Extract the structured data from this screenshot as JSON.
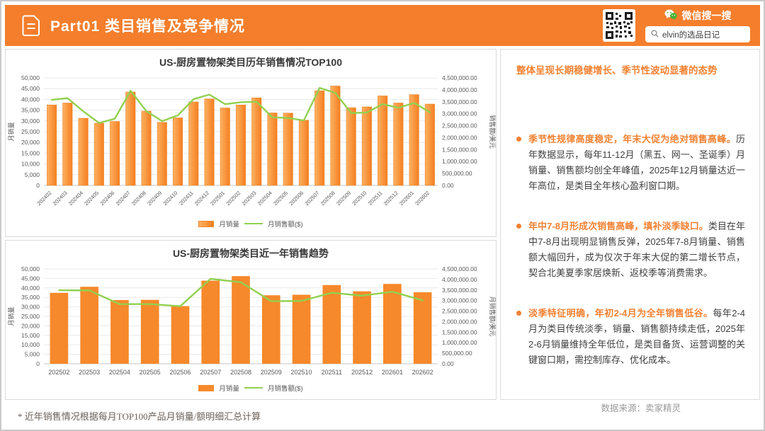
{
  "header": {
    "title": "Part01 类目销售及竞争情况",
    "wechat_label": "微信搜一搜",
    "search_text": "elvin的选品日记"
  },
  "insights": {
    "heading": "整体呈现长期稳健增长、季节性波动显著的态势",
    "bullets": [
      {
        "lead": "季节性规律高度稳定，年末大促为绝对销售高峰。",
        "body": "历年数据显示，每年11-12月（黑五、网一、圣诞季）月销量、销售额均创全年峰值，2025年12月销量达近一年高位，是类目全年核心盈利窗口期。"
      },
      {
        "lead": "年中7-8月形成次销售高峰，填补淡季缺口。",
        "body": "类目在年中7-8月出现明显销售反弹，2025年7-8月销量、销售额大幅回升，成为仅次于年末大促的第二增长节点，契合北美夏季家居焕新、返校季等消费需求。"
      },
      {
        "lead": "淡季特征明确，年初2-4月为全年销售低谷。",
        "body": "每年2-4月为类目传统淡季，销量、销售额持续走低，2025年2-6月销量维持全年低位，是类目备货、运营调整的关键窗口期，需控制库存、优化成本。"
      }
    ]
  },
  "footer": {
    "note": "* 近年销售情况根据每月TOP100产品月销量/额明细汇总计算",
    "source": "数据来源：卖家精灵"
  },
  "colors": {
    "accent_orange": "#F47E2C",
    "bar_light": "#FCB161",
    "bar_dark": "#F57E20",
    "bar_stroke": "#ED8A2F",
    "bar_solid": "#F6892B",
    "line_green": "#92D050",
    "tick_text": "#595959",
    "grid": "#e9e9e9"
  },
  "chart_data": [
    {
      "type": "bar",
      "title": "US-厨房置物架类目历年销售情况TOP100",
      "bar_style": "gradient",
      "x_label_rotate": true,
      "legend_position": "bottom",
      "categories": [
        "202402",
        "202403",
        "202404",
        "202405",
        "202406",
        "202407",
        "202408",
        "202409",
        "202410",
        "202411",
        "202412",
        "202501",
        "202502",
        "202503",
        "202504",
        "202505",
        "202506",
        "202507",
        "202508",
        "202509",
        "202510",
        "202511",
        "202512",
        "202601",
        "202602"
      ],
      "series": [
        {
          "name": "月销量",
          "type": "bar",
          "axis": "left",
          "values": [
            37400,
            38300,
            31200,
            28900,
            29700,
            43400,
            34500,
            29300,
            31400,
            38800,
            40200,
            36000,
            37400,
            40700,
            33700,
            33600,
            30300,
            44000,
            46200,
            36100,
            36500,
            41600,
            38300,
            42200,
            37800
          ]
        },
        {
          "name": "月销售额($)",
          "type": "line",
          "axis": "right",
          "values": [
            3580000,
            3650000,
            3100000,
            2610000,
            2790000,
            3960000,
            3110000,
            2690000,
            2930000,
            3610000,
            3800000,
            3400000,
            3480000,
            3500000,
            2850000,
            2820000,
            2720000,
            4080000,
            3870000,
            3030000,
            3050000,
            3400000,
            3250000,
            3450000,
            3060000
          ]
        }
      ],
      "left_axis": {
        "label": "月销量",
        "min": 0,
        "max": 50000,
        "step": 5000,
        "decimals": 0
      },
      "right_axis": {
        "label": "销售额/美元",
        "min": 0,
        "max": 4500000,
        "step": 500000,
        "decimals": 2
      }
    },
    {
      "type": "bar",
      "title": "US-厨房置物架类目近一年销售趋势",
      "bar_style": "solid",
      "x_label_rotate": false,
      "legend_position": "bottom",
      "categories": [
        "202502",
        "202503",
        "202504",
        "202505",
        "202506",
        "202507",
        "202508",
        "202509",
        "202510",
        "202511",
        "202512",
        "202601",
        "202602"
      ],
      "series": [
        {
          "name": "月销量",
          "type": "bar",
          "axis": "left",
          "values": [
            37400,
            40600,
            33600,
            33700,
            30400,
            43800,
            46200,
            36100,
            36400,
            41500,
            38200,
            42100,
            37700
          ]
        },
        {
          "name": "月销售额($)",
          "type": "line",
          "axis": "right",
          "values": [
            3490000,
            3480000,
            2830000,
            2830000,
            2730000,
            4030000,
            3870000,
            2970000,
            2980000,
            3370000,
            3230000,
            3420000,
            3010000
          ]
        }
      ],
      "left_axis": {
        "label": "月销量",
        "min": 0,
        "max": 50000,
        "step": 5000,
        "decimals": 0
      },
      "right_axis": {
        "label": "月销售额/美元",
        "min": 0,
        "max": 4500000,
        "step": 500000,
        "decimals": 2
      }
    }
  ]
}
